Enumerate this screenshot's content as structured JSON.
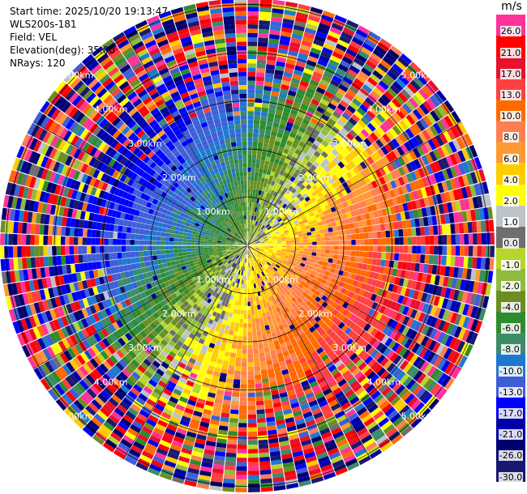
{
  "info": {
    "start_time": "Start time: 2025/10/20 19:13:47",
    "station": "WLS200s-181",
    "field": "Field: VEL",
    "elevation": "Elevation(deg): 35.00",
    "nrays": "NRays: 120"
  },
  "colorbar": {
    "unit": "m/s",
    "labels": [
      "26.0",
      "21.0",
      "17.0",
      "13.0",
      "10.0",
      "8.0",
      "6.0",
      "4.0",
      "2.0",
      "1.0",
      "0.0",
      "-1.0",
      "-2.0",
      "-4.0",
      "-6.0",
      "-8.0",
      "-10.0",
      "-13.0",
      "-17.0",
      "-21.0",
      "-26.0",
      "-30.0"
    ],
    "colors": [
      "#ff3399",
      "#ff0000",
      "#e8102a",
      "#ff4040",
      "#ff6a00",
      "#ff7f50",
      "#ff9933",
      "#ffcc00",
      "#ffff00",
      "#bcc3c9",
      "#6e6e6e",
      "#b6d62c",
      "#8fbc3f",
      "#6b8e23",
      "#2e8b2e",
      "#3b8c67",
      "#1f78d0",
      "#3e5ed8",
      "#0000ff",
      "#0000a8",
      "#000070",
      "#191970"
    ]
  },
  "chart_data": {
    "type": "heatmap",
    "projection": "polar (PPI)",
    "field": "VEL",
    "unit": "m/s",
    "nrays": 120,
    "range_rings_km": [
      1.0,
      2.0,
      3.0,
      4.0,
      5.0
    ],
    "ring_labels": [
      "1.00km",
      "2.00km",
      "3.00km",
      "4.00km",
      "5.00km"
    ],
    "color_scale": [
      -30.0,
      -26.0,
      -21.0,
      -17.0,
      -13.0,
      -10.0,
      -8.0,
      -6.0,
      -4.0,
      -2.0,
      -1.0,
      0.0,
      1.0,
      2.0,
      4.0,
      6.0,
      8.0,
      10.0,
      13.0,
      17.0,
      21.0,
      26.0
    ],
    "pattern": {
      "near_field": "negative velocities (blue/green) to the west and north-west, positive velocities (red/orange/yellow) to the east and south-east",
      "far_field": "noisy, mixed values across the full scale beyond about 3.5 km"
    }
  }
}
